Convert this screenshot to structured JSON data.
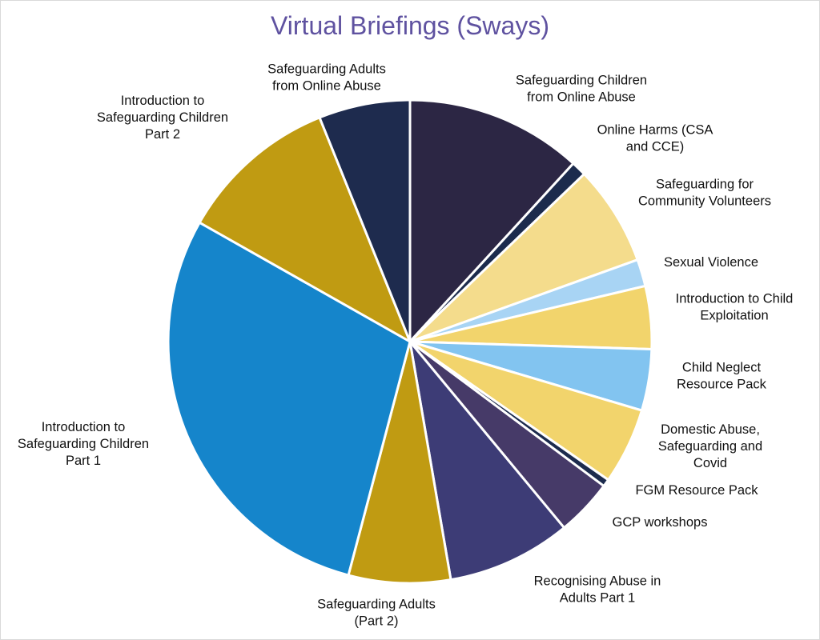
{
  "chart_data": {
    "type": "pie",
    "title": "Virtual Briefings (Sways)",
    "start_angle_deg": 0,
    "direction": "clockwise",
    "slices": [
      {
        "label": [
          "Safeguarding Children",
          "from Online Abuse"
        ],
        "value": 11.8,
        "color": "#2c2644"
      },
      {
        "label": [
          "Online Harms (CSA",
          "and CCE)"
        ],
        "value": 1.0,
        "color": "#1c2b4d"
      },
      {
        "label": [
          "Safeguarding for",
          "Community Volunteers"
        ],
        "value": 6.7,
        "color": "#f4dc8c"
      },
      {
        "label": [
          "Sexual Violence"
        ],
        "value": 1.8,
        "color": "#a8d4f4"
      },
      {
        "label": [
          "Introduction to Child",
          "Exploitation"
        ],
        "value": 4.2,
        "color": "#f2d46c"
      },
      {
        "label": [
          "Child Neglect",
          "Resource Pack"
        ],
        "value": 4.1,
        "color": "#82c4f0"
      },
      {
        "label": [
          "Domestic Abuse,",
          "Safeguarding and",
          "Covid"
        ],
        "value": 5.1,
        "color": "#f2d46c"
      },
      {
        "label": [
          "FGM Resource Pack"
        ],
        "value": 0.5,
        "color": "#1c2b4d"
      },
      {
        "label": [
          "GCP workshops"
        ],
        "value": 3.8,
        "color": "#463a68"
      },
      {
        "label": [
          "Recognising Abuse in",
          "Adults Part 1"
        ],
        "value": 8.3,
        "color": "#3d3c76"
      },
      {
        "label": [
          "Safeguarding Adults",
          "(Part 2)"
        ],
        "value": 6.8,
        "color": "#c09b12"
      },
      {
        "label": [
          "Introduction to",
          "Safeguarding Children",
          "Part 1"
        ],
        "value": 29.1,
        "color": "#1585cb"
      },
      {
        "label": [
          "Introduction to",
          "Safeguarding Children",
          "Part 2"
        ],
        "value": 10.7,
        "color": "#c09b12"
      },
      {
        "label": [
          "Safeguarding Adults",
          "from Online Abuse"
        ],
        "value": 6.1,
        "color": "#1e2b4e"
      }
    ]
  }
}
